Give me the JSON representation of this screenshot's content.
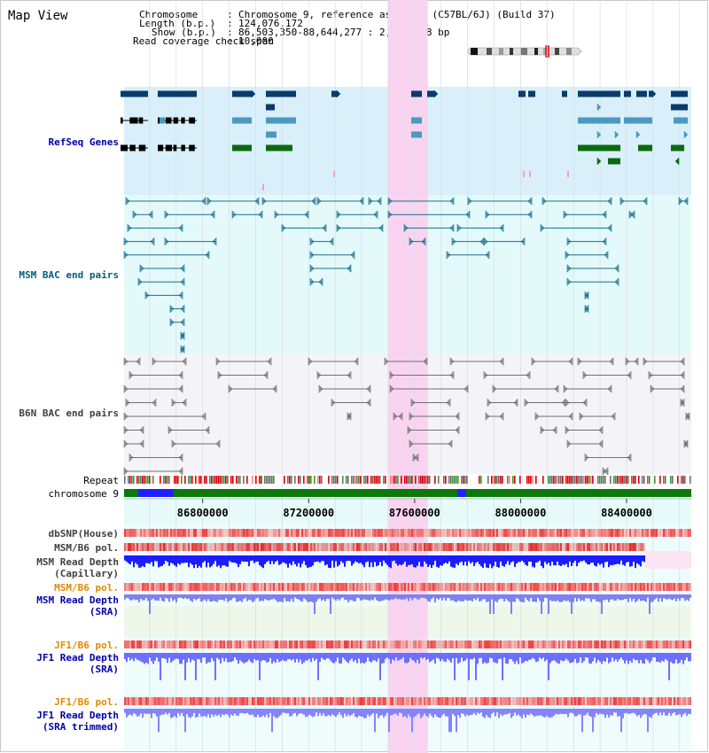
{
  "header": {
    "title": "Map View",
    "chromosome_label": "Chromosome",
    "chromosome_value": "Chromosome 9, reference assembly (C57BL/6J) (Build 37)",
    "length_label": "Length (b.p.)",
    "length_value": "124,076,172",
    "show_label": "Show (b.p.)",
    "show_value": "86,503,350-88,644,277 : 2,140,928 bp",
    "coverage_label": "Read coverage check span",
    "coverage_value": "10,000"
  },
  "view": {
    "start": 86503350,
    "end": 88644277,
    "highlight": [
      87499000,
      87650000
    ]
  },
  "axis": {
    "ticks": [
      86800000,
      87200000,
      87600000,
      88000000,
      88400000
    ],
    "labels": [
      "86800000",
      "87200000",
      "87600000",
      "88000000",
      "88400000"
    ]
  },
  "tracks": {
    "refseq": "RefSeq Genes",
    "msm_bac": "MSM BAC end pairs",
    "b6n_bac": "B6N BAC end pairs",
    "repeat": "Repeat",
    "chromosome": "chromosome 9",
    "dbsnp": "dbSNP(House)",
    "msm_b6_pol_1": "MSM/B6 pol.",
    "msm_read_depth_cap": "MSM Read Depth\n(Capillary)",
    "msm_b6_pol_2": "MSM/B6 pol.",
    "msm_read_depth_sra": "MSM Read Depth\n(SRA)",
    "jf1_b6_pol_1": "JF1/B6 pol.",
    "jf1_read_depth_sra": "JF1 Read Depth\n(SRA)",
    "jf1_b6_pol_2": "JF1/B6 pol.",
    "jf1_read_depth_trim": "JF1 Read Depth\n(SRA trimmed)"
  },
  "colors": {
    "refseq_bg": "#d9f0fa",
    "bac_bg": "#e4fafa",
    "b6n_bg": "#f4f4f8",
    "highlight": "#f8d4f0",
    "label_blue": "#0000a8",
    "label_teal": "#005e80",
    "label_gray": "#404040",
    "label_orange": "#e08a00",
    "gene_navy": "#0b3a6e",
    "gene_teal": "#4b98c0",
    "gene_green": "#0b6a10",
    "msm_bac": "#1a6e8e",
    "b6n_bac": "#707070",
    "depth_blue": "#1c1cff",
    "depth_light": "#6e6eff",
    "chrom_green": "#0a780a"
  }
}
